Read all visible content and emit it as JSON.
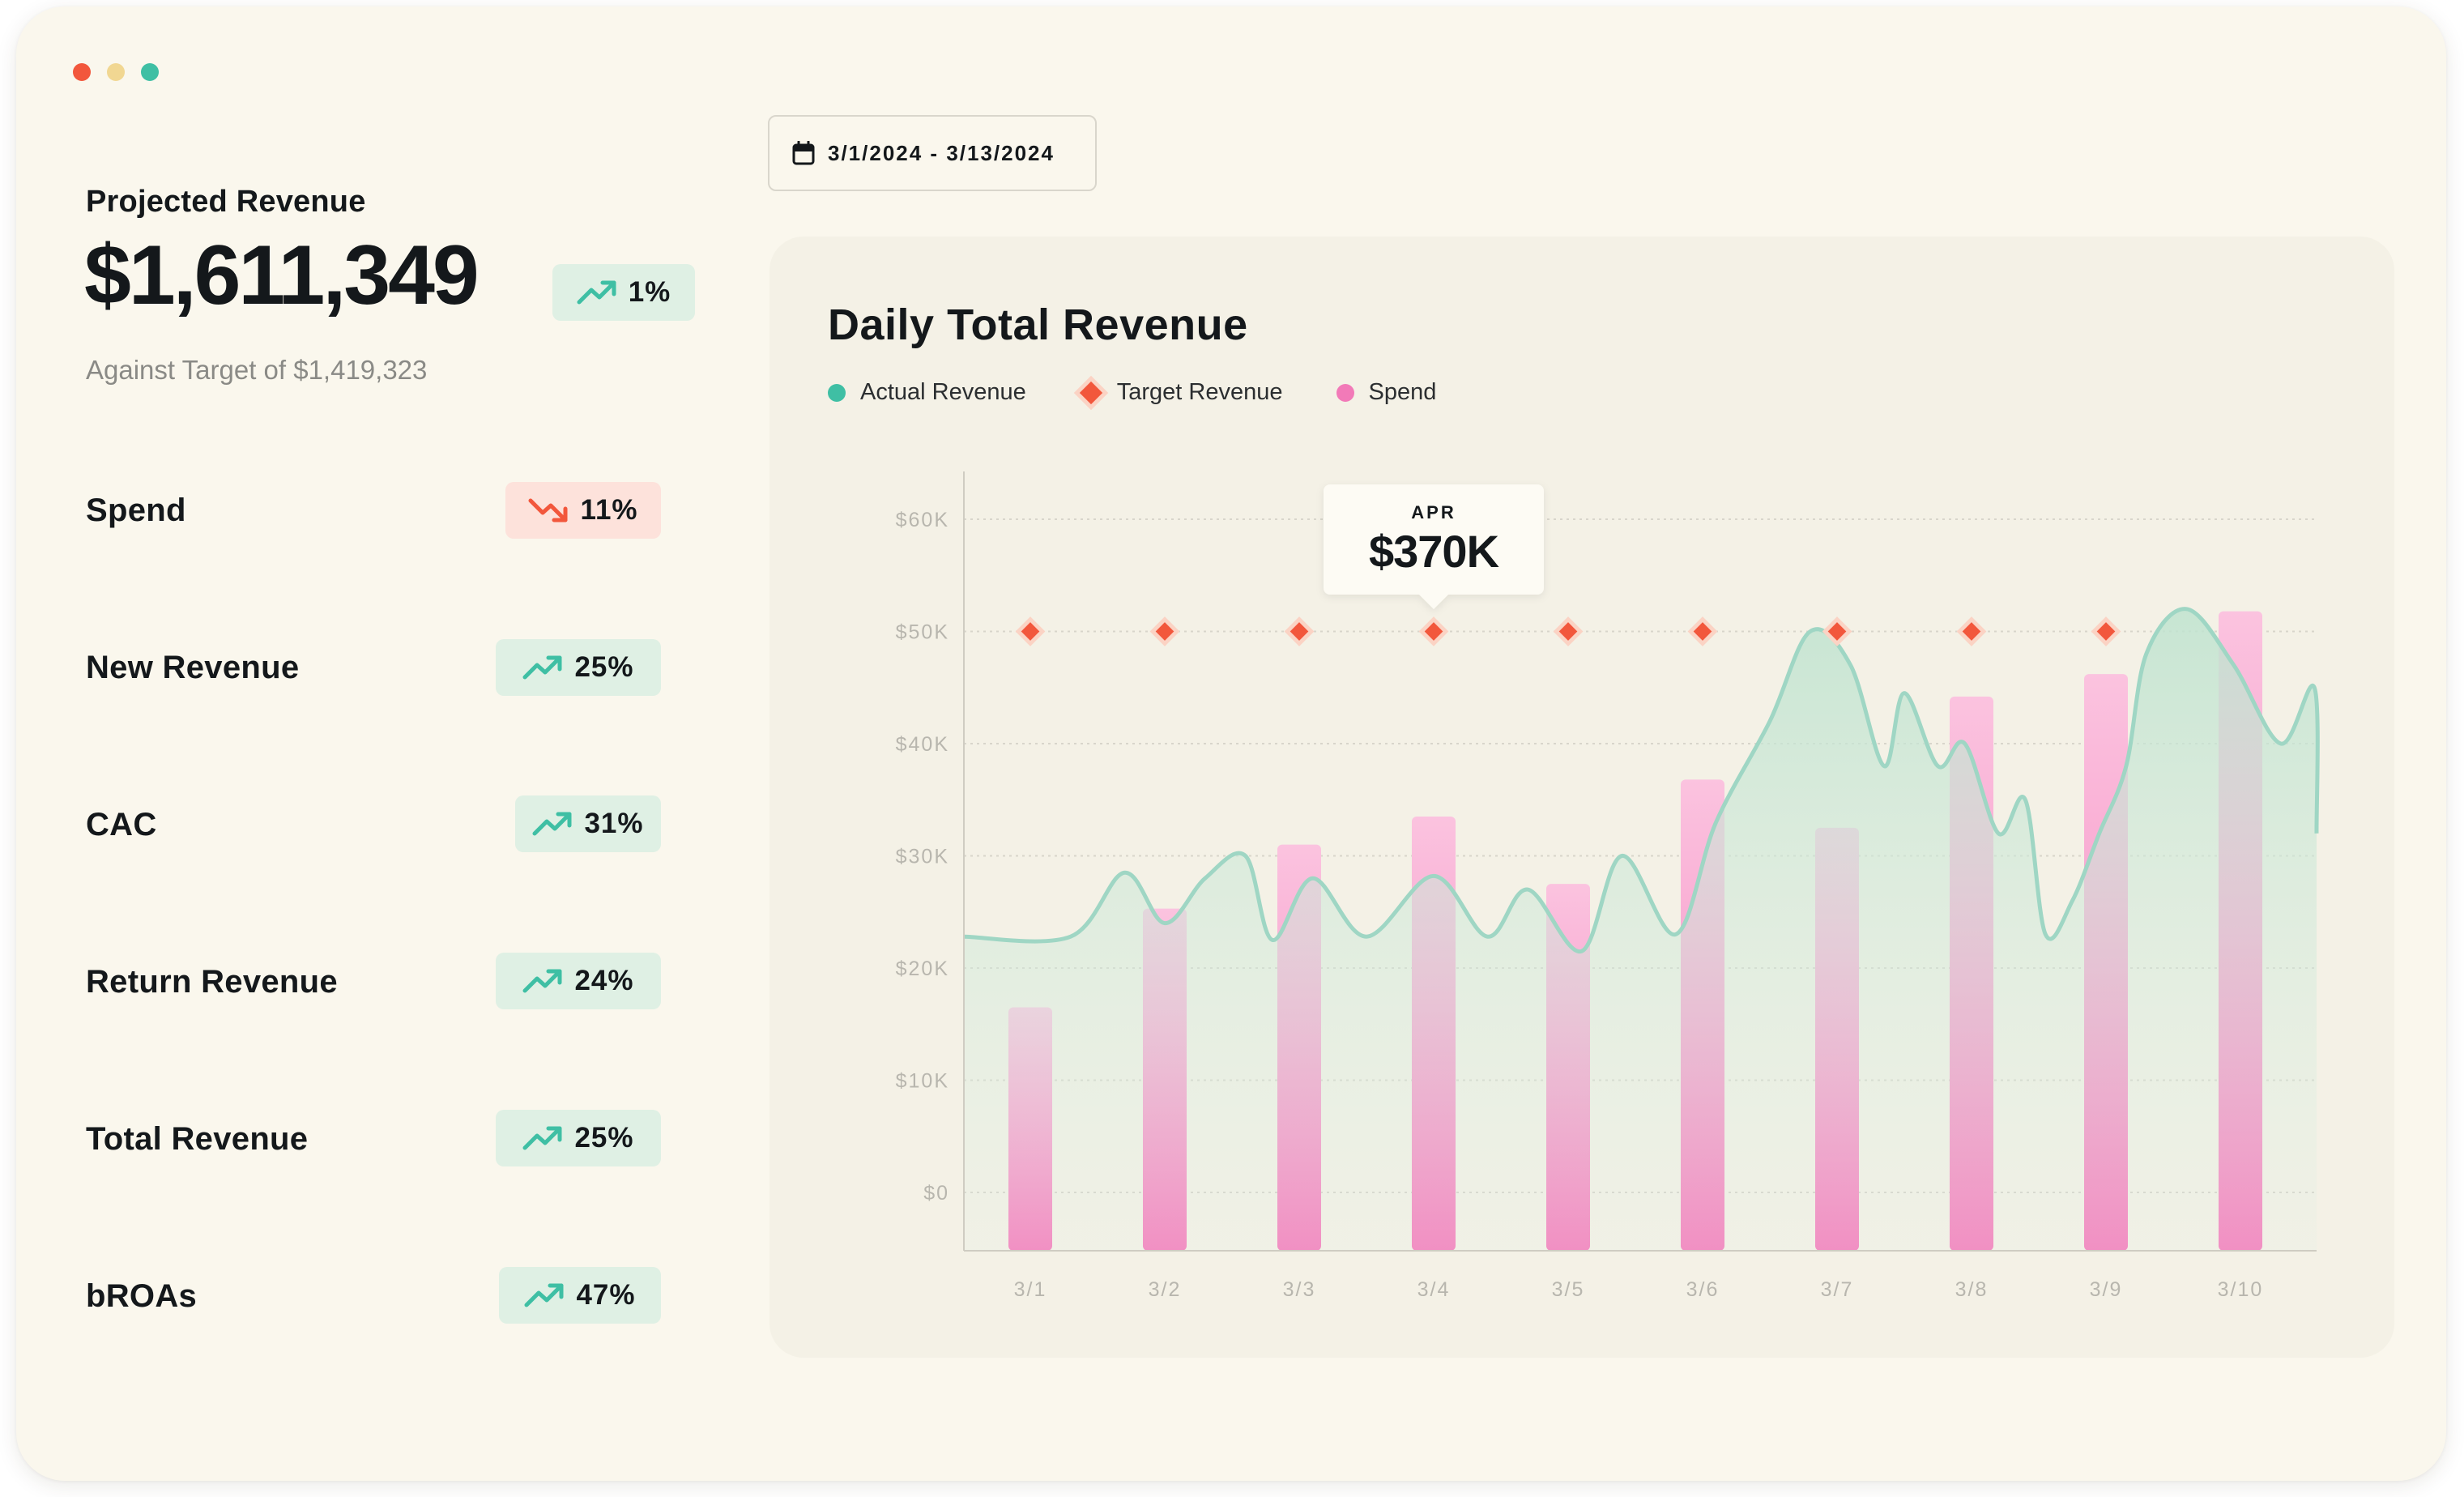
{
  "window": {
    "controls": [
      "close",
      "minimize",
      "maximize"
    ]
  },
  "summary": {
    "title": "Projected Revenue",
    "value": "$1,611,349",
    "change": "1%",
    "change_direction": "up",
    "subtitle": "Against Target of $1,419,323"
  },
  "metrics": [
    {
      "label": "Spend",
      "change": "11%",
      "direction": "down"
    },
    {
      "label": "New Revenue",
      "change": "25%",
      "direction": "up"
    },
    {
      "label": "CAC",
      "change": "31%",
      "direction": "up"
    },
    {
      "label": "Return Revenue",
      "change": "24%",
      "direction": "up"
    },
    {
      "label": "Total Revenue",
      "change": "25%",
      "direction": "up"
    },
    {
      "label": "bROAs",
      "change": "47%",
      "direction": "up"
    }
  ],
  "date_range": {
    "label": "3/1/2024 - 3/13/2024",
    "icon": "calendar-icon"
  },
  "colors": {
    "actual": "#3fbfa4",
    "target": "#f2573c",
    "spend": "#f27ab8",
    "up": "#3fbfa4",
    "down": "#f2573c"
  },
  "chart_data": {
    "type": "bar",
    "title": "Daily Total Revenue",
    "categories": [
      "3/1",
      "3/2",
      "3/3",
      "3/4",
      "3/5",
      "3/6",
      "3/7",
      "3/8",
      "3/9",
      "3/10"
    ],
    "y_ticks": [
      "$0",
      "$10K",
      "$20K",
      "$30K",
      "$40K",
      "$50K",
      "$60K"
    ],
    "ylim": [
      -5000,
      65000
    ],
    "grid": true,
    "legend_position": "top-left",
    "series": [
      {
        "name": "Spend",
        "type": "bar",
        "values": [
          16500,
          25300,
          31000,
          33500,
          27500,
          36800,
          32500,
          44200,
          46200,
          51800
        ]
      },
      {
        "name": "Target Revenue",
        "type": "scatter",
        "values": [
          50000,
          50000,
          50000,
          50000,
          50000,
          50000,
          50000,
          50000,
          50000,
          null
        ]
      },
      {
        "name": "Actual Revenue",
        "type": "area",
        "x": [
          0.3,
          0.7,
          1.0,
          1.3,
          1.6,
          1.8,
          2.1,
          2.5,
          3.0,
          3.4,
          3.7,
          4.1,
          4.4,
          4.8,
          5.1,
          5.5,
          5.8,
          6.1,
          6.35,
          6.5,
          6.75,
          6.95,
          7.2,
          7.4,
          7.55,
          7.75,
          7.95,
          8.15,
          8.3,
          8.6,
          8.95,
          9.3,
          9.55
        ],
        "values": [
          22800,
          28500,
          24000,
          28000,
          30000,
          22500,
          28000,
          22800,
          28200,
          22800,
          27000,
          21500,
          30000,
          23000,
          33000,
          42000,
          50000,
          47000,
          38000,
          44500,
          38000,
          40000,
          32000,
          35000,
          23000,
          26000,
          32000,
          38000,
          48000,
          52000,
          47000,
          40000,
          45000
        ]
      }
    ],
    "tooltip": {
      "label": "APR",
      "value": "$370K",
      "category": "3/4"
    }
  }
}
